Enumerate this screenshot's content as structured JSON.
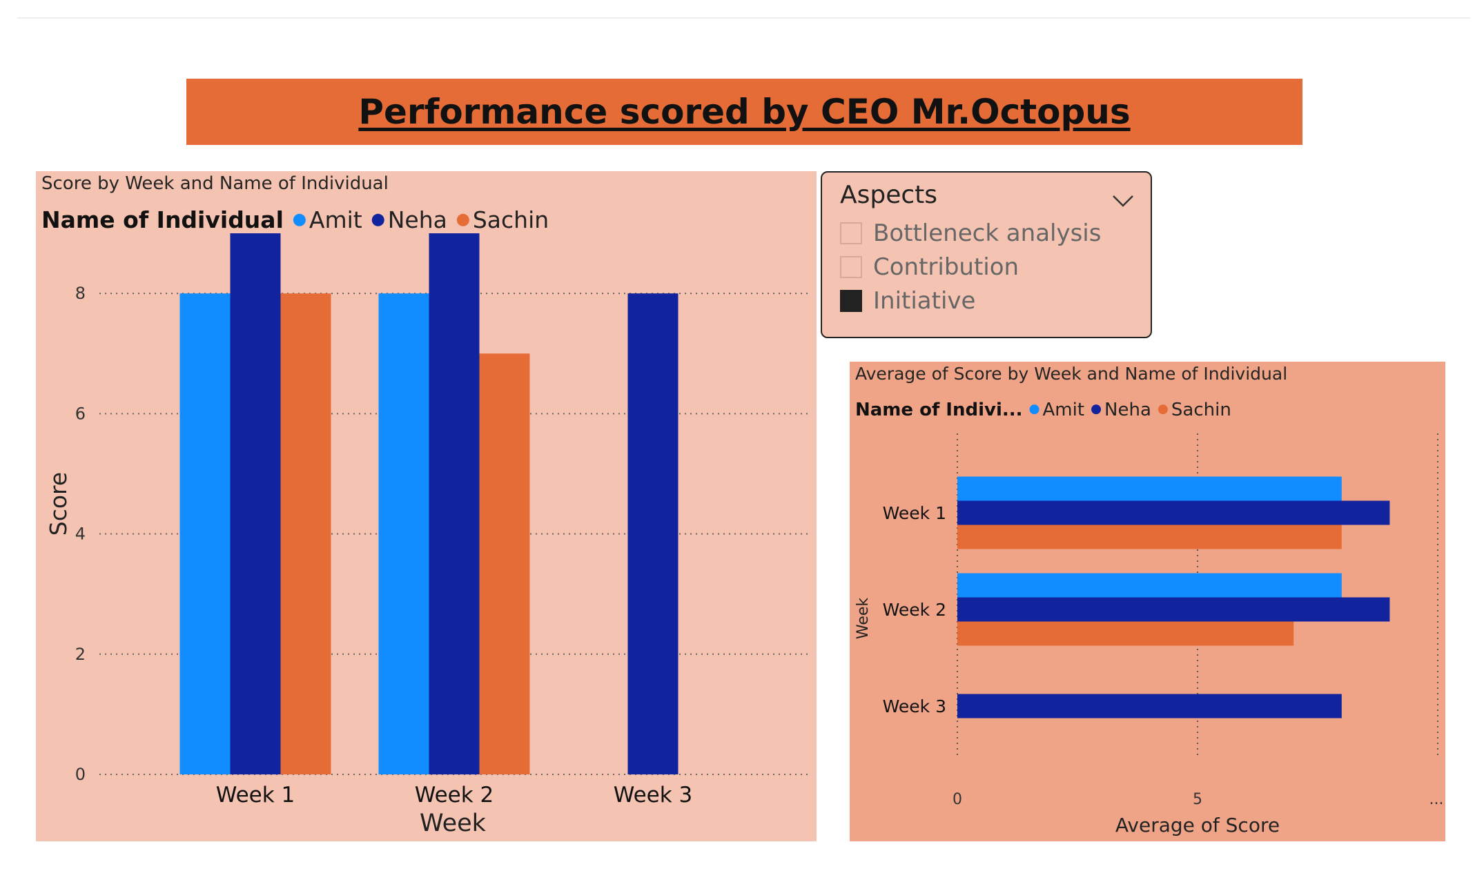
{
  "report_title": "Performance scored by CEO Mr.Octopus",
  "slicer": {
    "header": "Aspects",
    "items": [
      {
        "label": "Bottleneck analysis",
        "checked": false
      },
      {
        "label": "Contribution",
        "checked": false
      },
      {
        "label": "Initiative",
        "checked": true
      }
    ]
  },
  "colors": {
    "Amit": "#118DFF",
    "Neha": "#12239E",
    "Sachin": "#E66C37"
  },
  "chart_data": [
    {
      "type": "bar",
      "orientation": "vertical",
      "title": "Score by Week and Name of Individual",
      "legend_title": "Name of Individual",
      "legend_position": "top-left",
      "categories": [
        "Week 1",
        "Week 2",
        "Week 3"
      ],
      "series": [
        {
          "name": "Amit",
          "values": [
            8,
            8,
            null
          ]
        },
        {
          "name": "Neha",
          "values": [
            9,
            9,
            8
          ]
        },
        {
          "name": "Sachin",
          "values": [
            8,
            7,
            null
          ]
        }
      ],
      "xlabel": "Week",
      "ylabel": "Score",
      "ylim": [
        0,
        9
      ],
      "yticks": [
        0,
        2,
        4,
        6,
        8
      ],
      "grid": true
    },
    {
      "type": "bar",
      "orientation": "horizontal",
      "title": "Average of Score by Week and Name of Individual",
      "legend_title": "Name of Indivi...",
      "legend_position": "top-left",
      "categories": [
        "Week 1",
        "Week 2",
        "Week 3"
      ],
      "series": [
        {
          "name": "Amit",
          "values": [
            8,
            8,
            null
          ]
        },
        {
          "name": "Neha",
          "values": [
            9,
            9,
            8
          ]
        },
        {
          "name": "Sachin",
          "values": [
            8,
            7,
            null
          ]
        }
      ],
      "xlabel": "Average of Score",
      "ylabel": "Week",
      "xlim": [
        0,
        10
      ],
      "xticks": [
        "0",
        "5",
        "..."
      ],
      "grid": true
    }
  ]
}
